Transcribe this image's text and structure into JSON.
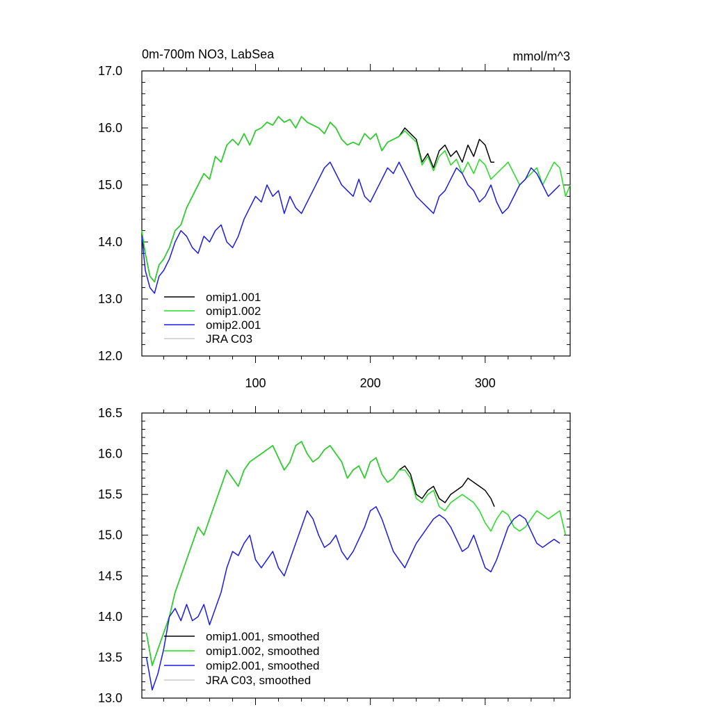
{
  "chart_data": [
    {
      "type": "line",
      "title": "0m-700m NO3, LabSea",
      "units": "mmol/m^3",
      "xlabel": "",
      "ylabel": "",
      "xlim": [
        1,
        374
      ],
      "ylim": [
        12.0,
        17.0
      ],
      "xticks": [
        100,
        200,
        300
      ],
      "yticks": [
        12.0,
        13.0,
        14.0,
        15.0,
        16.0,
        17.0
      ],
      "ytick_labels": [
        "12.0",
        "13.0",
        "14.0",
        "15.0",
        "16.0",
        "17.0"
      ],
      "xtick_labels": [
        "100",
        "200",
        "300"
      ],
      "legend_position": "bottom-left",
      "series": [
        {
          "name": "omip1.001",
          "color": "#000000",
          "x": [
            1,
            4,
            8,
            12,
            16,
            20,
            25,
            30,
            35,
            40,
            45,
            50,
            55,
            60,
            65,
            70,
            75,
            80,
            85,
            90,
            95,
            100,
            105,
            110,
            115,
            120,
            125,
            130,
            135,
            140,
            145,
            150,
            155,
            160,
            165,
            170,
            175,
            180,
            185,
            190,
            195,
            200,
            205,
            210,
            215,
            220,
            225,
            230,
            235,
            240,
            245,
            250,
            255,
            260,
            265,
            270,
            275,
            280,
            285,
            290,
            295,
            300,
            305,
            308
          ],
          "values": [
            14.1,
            13.8,
            13.4,
            13.3,
            13.6,
            13.7,
            13.9,
            14.2,
            14.3,
            14.6,
            14.8,
            15.0,
            15.2,
            15.1,
            15.5,
            15.4,
            15.7,
            15.8,
            15.7,
            15.9,
            15.7,
            15.95,
            16.0,
            16.1,
            16.05,
            16.2,
            16.1,
            16.15,
            16.0,
            16.2,
            16.1,
            16.05,
            16.0,
            15.9,
            16.1,
            16.0,
            15.8,
            15.7,
            15.75,
            15.7,
            15.9,
            15.8,
            15.9,
            15.6,
            15.75,
            15.8,
            15.85,
            16.0,
            15.9,
            15.8,
            15.4,
            15.55,
            15.3,
            15.6,
            15.7,
            15.5,
            15.6,
            15.4,
            15.7,
            15.5,
            15.8,
            15.7,
            15.4,
            15.4
          ]
        },
        {
          "name": "omip1.002",
          "color": "#22dd22",
          "x": [
            1,
            4,
            8,
            12,
            16,
            20,
            25,
            30,
            35,
            40,
            45,
            50,
            55,
            60,
            65,
            70,
            75,
            80,
            85,
            90,
            95,
            100,
            105,
            110,
            115,
            120,
            125,
            130,
            135,
            140,
            145,
            150,
            155,
            160,
            165,
            170,
            175,
            180,
            185,
            190,
            195,
            200,
            205,
            210,
            215,
            220,
            225,
            230,
            235,
            240,
            245,
            250,
            255,
            260,
            265,
            270,
            275,
            280,
            285,
            290,
            295,
            300,
            305,
            310,
            315,
            320,
            325,
            330,
            335,
            340,
            345,
            350,
            355,
            360,
            365,
            370,
            374
          ],
          "values": [
            14.2,
            13.8,
            13.4,
            13.3,
            13.6,
            13.7,
            13.9,
            14.2,
            14.3,
            14.6,
            14.8,
            15.0,
            15.2,
            15.1,
            15.5,
            15.4,
            15.7,
            15.8,
            15.7,
            15.9,
            15.7,
            15.95,
            16.0,
            16.1,
            16.05,
            16.2,
            16.1,
            16.15,
            16.0,
            16.2,
            16.1,
            16.05,
            16.0,
            15.9,
            16.1,
            16.0,
            15.8,
            15.7,
            15.75,
            15.7,
            15.9,
            15.8,
            15.9,
            15.6,
            15.75,
            15.8,
            15.85,
            15.95,
            15.85,
            15.75,
            15.35,
            15.5,
            15.25,
            15.5,
            15.6,
            15.35,
            15.45,
            15.2,
            15.4,
            15.2,
            15.45,
            15.35,
            15.1,
            15.2,
            15.3,
            15.4,
            15.2,
            15.0,
            15.1,
            15.2,
            15.3,
            15.0,
            15.2,
            15.4,
            15.3,
            14.8,
            15.0
          ]
        },
        {
          "name": "omip2.001",
          "color": "#1a1ae6",
          "x": [
            1,
            4,
            8,
            12,
            16,
            20,
            25,
            30,
            35,
            40,
            45,
            50,
            55,
            60,
            65,
            70,
            75,
            80,
            85,
            90,
            95,
            100,
            105,
            110,
            115,
            120,
            125,
            130,
            135,
            140,
            145,
            150,
            155,
            160,
            165,
            170,
            175,
            180,
            185,
            190,
            195,
            200,
            205,
            210,
            215,
            220,
            225,
            230,
            235,
            240,
            245,
            250,
            255,
            260,
            265,
            270,
            275,
            280,
            285,
            290,
            295,
            300,
            305,
            310,
            315,
            320,
            325,
            330,
            335,
            340,
            345,
            350,
            355,
            360,
            365
          ],
          "values": [
            14.1,
            13.5,
            13.2,
            13.1,
            13.4,
            13.5,
            13.7,
            14.0,
            14.2,
            14.1,
            13.9,
            13.8,
            14.1,
            14.0,
            14.2,
            14.3,
            14.0,
            13.9,
            14.1,
            14.4,
            14.6,
            14.8,
            14.7,
            15.0,
            14.8,
            14.9,
            14.5,
            14.8,
            14.6,
            14.5,
            14.7,
            14.9,
            15.1,
            15.3,
            15.4,
            15.2,
            15.0,
            14.9,
            14.8,
            15.1,
            14.8,
            14.7,
            14.9,
            15.1,
            15.3,
            15.2,
            15.4,
            15.2,
            15.0,
            14.8,
            14.7,
            14.6,
            14.5,
            14.8,
            14.9,
            15.1,
            15.3,
            15.2,
            15.0,
            14.9,
            14.7,
            14.8,
            15.0,
            14.7,
            14.5,
            14.6,
            14.8,
            15.0,
            15.1,
            15.3,
            15.2,
            15.0,
            14.8,
            14.9,
            15.0
          ]
        },
        {
          "name": "JRA C03",
          "color": "#c8c8c8",
          "x": [],
          "values": []
        }
      ]
    },
    {
      "type": "line",
      "title": "",
      "xlabel": "",
      "ylabel": "",
      "xlim": [
        1,
        374
      ],
      "ylim": [
        13.0,
        16.5
      ],
      "xticks": [
        100,
        200,
        300
      ],
      "yticks": [
        13.0,
        13.5,
        14.0,
        14.5,
        15.0,
        15.5,
        16.0,
        16.5
      ],
      "ytick_labels": [
        "13.0",
        "13.5",
        "14.0",
        "14.5",
        "15.0",
        "15.5",
        "16.0",
        "16.5"
      ],
      "legend_position": "bottom-left",
      "series": [
        {
          "name": "omip1.001, smoothed",
          "color": "#000000",
          "x": [
            5,
            10,
            15,
            20,
            25,
            30,
            35,
            40,
            45,
            50,
            55,
            60,
            65,
            70,
            75,
            80,
            85,
            90,
            95,
            100,
            105,
            110,
            115,
            120,
            125,
            130,
            135,
            140,
            145,
            150,
            155,
            160,
            165,
            170,
            175,
            180,
            185,
            190,
            195,
            200,
            205,
            210,
            215,
            220,
            225,
            230,
            235,
            240,
            245,
            250,
            255,
            260,
            265,
            270,
            275,
            280,
            285,
            290,
            295,
            300,
            305,
            308
          ],
          "values": [
            13.8,
            13.4,
            13.6,
            13.8,
            14.0,
            14.3,
            14.5,
            14.7,
            14.9,
            15.1,
            15.0,
            15.2,
            15.4,
            15.6,
            15.8,
            15.7,
            15.6,
            15.8,
            15.9,
            15.95,
            16.0,
            16.05,
            16.1,
            15.95,
            15.8,
            15.9,
            16.1,
            16.15,
            16.0,
            15.9,
            15.95,
            16.05,
            16.1,
            16.0,
            15.9,
            15.7,
            15.8,
            15.85,
            15.7,
            15.9,
            15.95,
            15.75,
            15.65,
            15.7,
            15.8,
            15.85,
            15.75,
            15.5,
            15.45,
            15.55,
            15.6,
            15.45,
            15.4,
            15.5,
            15.55,
            15.6,
            15.7,
            15.65,
            15.6,
            15.55,
            15.45,
            15.35
          ]
        },
        {
          "name": "omip1.002, smoothed",
          "color": "#22dd22",
          "x": [
            5,
            10,
            15,
            20,
            25,
            30,
            35,
            40,
            45,
            50,
            55,
            60,
            65,
            70,
            75,
            80,
            85,
            90,
            95,
            100,
            105,
            110,
            115,
            120,
            125,
            130,
            135,
            140,
            145,
            150,
            155,
            160,
            165,
            170,
            175,
            180,
            185,
            190,
            195,
            200,
            205,
            210,
            215,
            220,
            225,
            230,
            235,
            240,
            245,
            250,
            255,
            260,
            265,
            270,
            275,
            280,
            285,
            290,
            295,
            300,
            305,
            310,
            315,
            320,
            325,
            330,
            335,
            340,
            345,
            350,
            355,
            360,
            365,
            370
          ],
          "values": [
            13.8,
            13.4,
            13.6,
            13.8,
            14.0,
            14.3,
            14.5,
            14.7,
            14.9,
            15.1,
            15.0,
            15.2,
            15.4,
            15.6,
            15.8,
            15.7,
            15.6,
            15.8,
            15.9,
            15.95,
            16.0,
            16.05,
            16.1,
            15.95,
            15.8,
            15.9,
            16.1,
            16.15,
            16.0,
            15.9,
            15.95,
            16.05,
            16.1,
            16.0,
            15.9,
            15.7,
            15.8,
            15.85,
            15.7,
            15.9,
            15.95,
            15.75,
            15.65,
            15.7,
            15.8,
            15.8,
            15.7,
            15.45,
            15.4,
            15.5,
            15.55,
            15.35,
            15.3,
            15.4,
            15.45,
            15.5,
            15.45,
            15.4,
            15.3,
            15.15,
            15.05,
            15.2,
            15.3,
            15.25,
            15.1,
            15.05,
            15.1,
            15.2,
            15.3,
            15.25,
            15.2,
            15.25,
            15.3,
            15.0
          ]
        },
        {
          "name": "omip2.001, smoothed",
          "color": "#1a1ae6",
          "x": [
            5,
            10,
            15,
            20,
            25,
            30,
            35,
            40,
            45,
            50,
            55,
            60,
            65,
            70,
            75,
            80,
            85,
            90,
            95,
            100,
            105,
            110,
            115,
            120,
            125,
            130,
            135,
            140,
            145,
            150,
            155,
            160,
            165,
            170,
            175,
            180,
            185,
            190,
            195,
            200,
            205,
            210,
            215,
            220,
            225,
            230,
            235,
            240,
            245,
            250,
            255,
            260,
            265,
            270,
            275,
            280,
            285,
            290,
            295,
            300,
            305,
            310,
            315,
            320,
            325,
            330,
            335,
            340,
            345,
            350,
            355,
            360,
            365
          ],
          "values": [
            13.5,
            13.1,
            13.3,
            13.6,
            14.0,
            14.1,
            13.95,
            14.15,
            13.95,
            14.0,
            14.15,
            13.9,
            14.1,
            14.3,
            14.6,
            14.8,
            14.75,
            14.9,
            15.0,
            14.7,
            14.6,
            14.7,
            14.8,
            14.6,
            14.5,
            14.7,
            14.9,
            15.1,
            15.3,
            15.2,
            15.0,
            14.85,
            14.9,
            15.0,
            14.8,
            14.7,
            14.8,
            14.95,
            15.1,
            15.3,
            15.35,
            15.2,
            15.0,
            14.8,
            14.7,
            14.6,
            14.75,
            14.9,
            15.0,
            15.1,
            15.2,
            15.25,
            15.2,
            15.1,
            14.95,
            14.8,
            14.85,
            15.0,
            14.8,
            14.6,
            14.55,
            14.7,
            14.9,
            15.1,
            15.2,
            15.25,
            15.2,
            15.05,
            14.9,
            14.85,
            14.9,
            14.95,
            14.9
          ]
        },
        {
          "name": "JRA C03, smoothed",
          "color": "#c8c8c8",
          "x": [],
          "values": []
        }
      ]
    }
  ]
}
